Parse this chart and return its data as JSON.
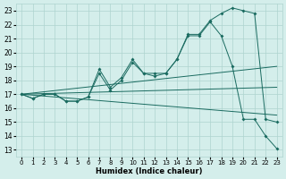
{
  "xlabel": "Humidex (Indice chaleur)",
  "xlim": [
    -0.5,
    23.5
  ],
  "ylim": [
    12.5,
    23.5
  ],
  "yticks": [
    13,
    14,
    15,
    16,
    17,
    18,
    19,
    20,
    21,
    22,
    23
  ],
  "xticks": [
    0,
    1,
    2,
    3,
    4,
    5,
    6,
    7,
    8,
    9,
    10,
    11,
    12,
    13,
    14,
    15,
    16,
    17,
    18,
    19,
    20,
    21,
    22,
    23
  ],
  "bg_color": "#d4eeeb",
  "grid_color": "#aed4cf",
  "line_color": "#1a6b60",
  "line1_x": [
    0,
    1,
    2,
    3,
    4,
    5,
    6,
    7,
    8,
    9,
    10,
    11,
    12,
    13,
    14,
    15,
    16,
    17,
    18,
    19,
    20,
    21,
    22,
    23
  ],
  "line1_y": [
    17.0,
    16.7,
    17.0,
    17.0,
    16.5,
    16.5,
    16.8,
    18.8,
    17.5,
    18.2,
    19.5,
    18.5,
    18.5,
    18.5,
    19.5,
    21.2,
    21.2,
    22.2,
    21.2,
    19.0,
    15.2,
    15.2,
    14.0,
    13.1
  ],
  "line2_x": [
    0,
    1,
    2,
    3,
    4,
    5,
    6,
    7,
    8,
    9,
    10,
    11,
    12,
    13,
    14,
    15,
    16,
    17,
    18,
    19,
    20,
    21,
    22,
    23
  ],
  "line2_y": [
    17.0,
    16.7,
    17.0,
    17.0,
    16.5,
    16.5,
    16.8,
    18.5,
    17.3,
    18.0,
    19.3,
    18.5,
    18.3,
    18.5,
    19.5,
    21.3,
    21.3,
    22.3,
    22.8,
    23.2,
    23.0,
    22.8,
    15.2,
    15.0
  ],
  "line3_x": [
    0,
    23
  ],
  "line3_y": [
    17.0,
    19.0
  ],
  "line4_x": [
    0,
    23
  ],
  "line4_y": [
    17.0,
    17.5
  ],
  "line5_x": [
    0,
    23
  ],
  "line5_y": [
    17.0,
    15.5
  ]
}
